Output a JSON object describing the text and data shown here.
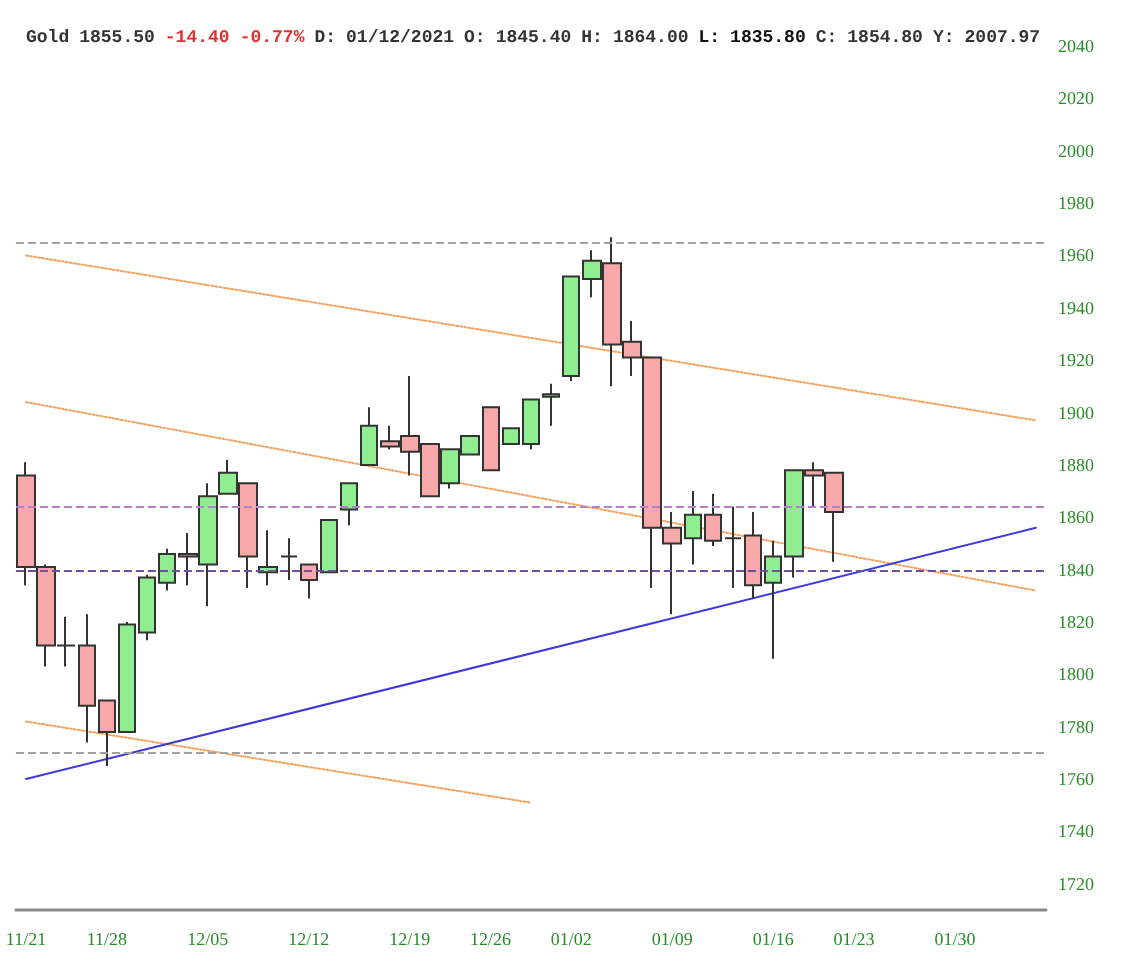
{
  "chart_data": {
    "type": "candlestick",
    "title": "Gold 1855.50 -14.40 -0.77% D: 01/12/2021 O: 1845.40 H: 1864.00 L: 1835.80 C: 1854.80 Y: 2007.97",
    "categories": [
      "11/21",
      null,
      null,
      null,
      "11/28",
      null,
      null,
      null,
      null,
      "12/05",
      null,
      null,
      null,
      null,
      "12/12",
      null,
      null,
      null,
      null,
      "12/19",
      null,
      null,
      null,
      "12/26",
      null,
      null,
      null,
      "01/02",
      null,
      null,
      null,
      null,
      "01/09",
      null,
      null,
      null,
      null,
      "01/16",
      null,
      null,
      null,
      "01/23",
      null,
      null,
      null,
      null,
      "01/30",
      null,
      null,
      null,
      null
    ],
    "ohlc": [
      [
        1876,
        1881,
        1834,
        1841
      ],
      [
        1841,
        1842,
        1803,
        1811
      ],
      [
        1811,
        1822,
        1803,
        1811
      ],
      [
        1811,
        1823,
        1774,
        1788
      ],
      [
        1790,
        1790,
        1765,
        1778
      ],
      [
        1778,
        1820,
        1778,
        1819
      ],
      [
        1816,
        1838,
        1813,
        1837
      ],
      [
        1835,
        1848,
        1832,
        1846
      ],
      [
        1846,
        1854,
        1834,
        1845
      ],
      [
        1842,
        1873,
        1826,
        1868
      ],
      [
        1869,
        1882,
        1869,
        1877
      ],
      [
        1873,
        1873,
        1833,
        1845
      ],
      [
        1839,
        1855,
        1834,
        1841
      ],
      [
        1845,
        1852,
        1836,
        1845
      ],
      [
        1842,
        1842,
        1829,
        1836
      ],
      [
        1839,
        1859,
        1839,
        1859
      ],
      [
        1863,
        1873,
        1857,
        1873
      ],
      [
        1880,
        1902,
        1880,
        1895
      ],
      [
        1889,
        1895,
        1886,
        1887
      ],
      [
        1891,
        1914,
        1876,
        1885
      ],
      [
        1888,
        1888,
        1868,
        1868
      ],
      [
        1873,
        1886,
        1871,
        1886
      ],
      [
        1884,
        1891,
        1884,
        1891
      ],
      [
        1902,
        1902,
        1878,
        1878
      ],
      [
        1888,
        1894,
        1888,
        1894
      ],
      [
        1888,
        1905,
        1886,
        1905
      ],
      [
        1906,
        1911,
        1895,
        1907
      ],
      [
        1914,
        1952,
        1912,
        1952
      ],
      [
        1951,
        1962,
        1944,
        1958
      ],
      [
        1957,
        1967,
        1910,
        1926
      ],
      [
        1927,
        1935,
        1914,
        1921
      ],
      [
        1921,
        1921,
        1833,
        1856
      ],
      [
        1856,
        1862,
        1823,
        1850
      ],
      [
        1852,
        1870,
        1842,
        1861
      ],
      [
        1861,
        1869,
        1849,
        1851
      ],
      [
        1852,
        1864,
        1833,
        1852
      ],
      [
        1853,
        1862,
        1829,
        1834
      ],
      [
        1835,
        1851,
        1806,
        1845
      ],
      [
        1845,
        1878,
        1837,
        1878
      ],
      [
        1878,
        1881,
        1864,
        1876
      ],
      [
        1877,
        1877,
        1843,
        1862
      ],
      null,
      null,
      null,
      null,
      null,
      null,
      null,
      null,
      null,
      null
    ],
    "colors": [
      "#f7a9a9",
      "#f7a9a9",
      "#333333",
      "#f7a9a9",
      "#f7a9a9",
      "#90ee90",
      "#90ee90",
      "#90ee90",
      "#f7a9a9",
      "#90ee90",
      "#90ee90",
      "#f7a9a9",
      "#90ee90",
      "#333333",
      "#f7a9a9",
      "#90ee90",
      "#90ee90",
      "#90ee90",
      "#f7a9a9",
      "#f7a9a9",
      "#f7a9a9",
      "#90ee90",
      "#90ee90",
      "#f7a9a9",
      "#90ee90",
      "#90ee90",
      "#90ee90",
      "#90ee90",
      "#90ee90",
      "#f7a9a9",
      "#f7a9a9",
      "#f7a9a9",
      "#f7a9a9",
      "#90ee90",
      "#f7a9a9",
      "#333333",
      "#f7a9a9",
      "#90ee90",
      "#90ee90",
      "#f7a9a9",
      "#f7a9a9",
      null,
      null,
      null,
      null,
      null,
      null,
      null,
      null,
      null,
      null
    ],
    "series": [
      {
        "type": "line",
        "color": "#f4a460",
        "line_style": "dotted",
        "values": [
          1960,
          null,
          null,
          null,
          null,
          null,
          null,
          null,
          null,
          null,
          null,
          null,
          null,
          null,
          null,
          null,
          null,
          null,
          null,
          null,
          null,
          null,
          null,
          null,
          null,
          null,
          null,
          null,
          null,
          null,
          null,
          null,
          null,
          null,
          null,
          null,
          null,
          null,
          null,
          null,
          null,
          null,
          null,
          null,
          null,
          null,
          null,
          null,
          null,
          null,
          1897
        ]
      },
      {
        "type": "line",
        "color": "#f4a460",
        "line_style": "dotted",
        "values": [
          1904,
          null,
          null,
          null,
          null,
          null,
          null,
          null,
          null,
          null,
          null,
          null,
          null,
          null,
          null,
          null,
          null,
          null,
          null,
          null,
          null,
          null,
          null,
          null,
          null,
          null,
          null,
          null,
          null,
          null,
          null,
          null,
          null,
          null,
          null,
          null,
          null,
          null,
          null,
          null,
          null,
          null,
          null,
          null,
          null,
          null,
          null,
          null,
          null,
          null,
          1832
        ]
      },
      {
        "type": "line",
        "color": "#f4a460",
        "line_style": "dotted",
        "values": [
          1782,
          null,
          null,
          null,
          null,
          null,
          null,
          null,
          null,
          null,
          null,
          null,
          null,
          null,
          null,
          null,
          null,
          null,
          null,
          null,
          null,
          null,
          null,
          null,
          null,
          1751,
          null,
          null,
          null,
          null,
          null,
          null,
          null,
          null,
          null,
          null,
          null,
          null,
          null,
          null,
          null,
          null,
          null,
          null,
          null,
          null,
          null,
          null,
          null,
          null,
          null
        ]
      },
      {
        "type": "line",
        "color": "#3b3bdb",
        "line_style": "solid",
        "values": [
          1760,
          null,
          null,
          null,
          null,
          null,
          null,
          null,
          null,
          null,
          null,
          null,
          null,
          null,
          null,
          null,
          null,
          null,
          null,
          null,
          null,
          null,
          null,
          null,
          null,
          null,
          null,
          null,
          null,
          null,
          null,
          null,
          null,
          null,
          null,
          null,
          null,
          null,
          null,
          null,
          null,
          null,
          null,
          null,
          null,
          null,
          null,
          null,
          null,
          null,
          1856
        ]
      }
    ],
    "ref_lines": [
      {
        "axis": "y",
        "value": 1965,
        "color": "#a0a0a0",
        "line_style": "dashed"
      },
      {
        "axis": "y",
        "value": 1770,
        "color": "#a0a0a0",
        "line_style": "dashed"
      },
      {
        "axis": "y",
        "value": 1864,
        "color": "#b57fcf",
        "line_style": "dashed"
      },
      {
        "axis": "y",
        "value": 1840,
        "color": "#6b4fa0",
        "line_style": "dashed"
      }
    ],
    "ylim": [
      1710,
      2040
    ],
    "yticks": [
      1720,
      1740,
      1760,
      1780,
      1800,
      1820,
      1840,
      1860,
      1880,
      1900,
      1920,
      1940,
      1960,
      1980,
      2000,
      2020,
      2040
    ],
    "grid": false
  }
}
